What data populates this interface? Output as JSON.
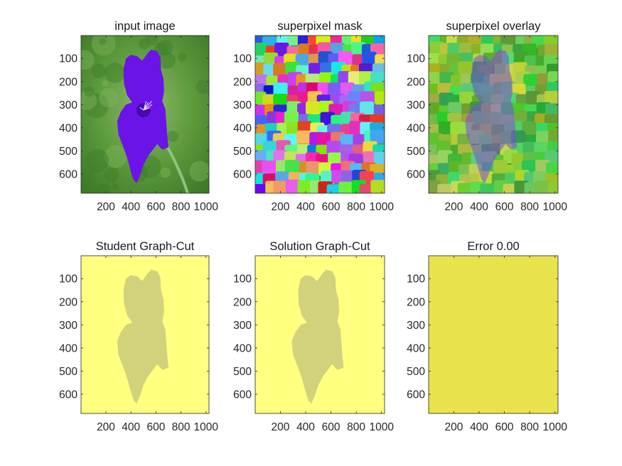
{
  "figure": {
    "panels": [
      {
        "id": "input",
        "title": "input image",
        "kind": "photo"
      },
      {
        "id": "mask",
        "title": "superpixel mask",
        "kind": "superpixels"
      },
      {
        "id": "overlay",
        "title": "superpixel overlay",
        "kind": "overlay"
      },
      {
        "id": "student",
        "title": "Student Graph-Cut",
        "kind": "segmentation"
      },
      {
        "id": "solution",
        "title": "Solution Graph-Cut",
        "kind": "segmentation"
      },
      {
        "id": "error",
        "title": "Error 0.00",
        "kind": "flat"
      }
    ],
    "x_ticks": [
      "200",
      "400",
      "600",
      "800",
      "1000"
    ],
    "y_ticks": [
      "100",
      "200",
      "300",
      "400",
      "500",
      "600"
    ],
    "x_range": [
      1,
      1024
    ],
    "y_range": [
      1,
      683
    ],
    "colors": {
      "background_yellow": "#ffff80",
      "foreground_olive": "#d2d27c",
      "error_yellow": "#e8e34c",
      "petal_purple": "#6b14e8",
      "foliage_green": "#5aa03c"
    }
  }
}
